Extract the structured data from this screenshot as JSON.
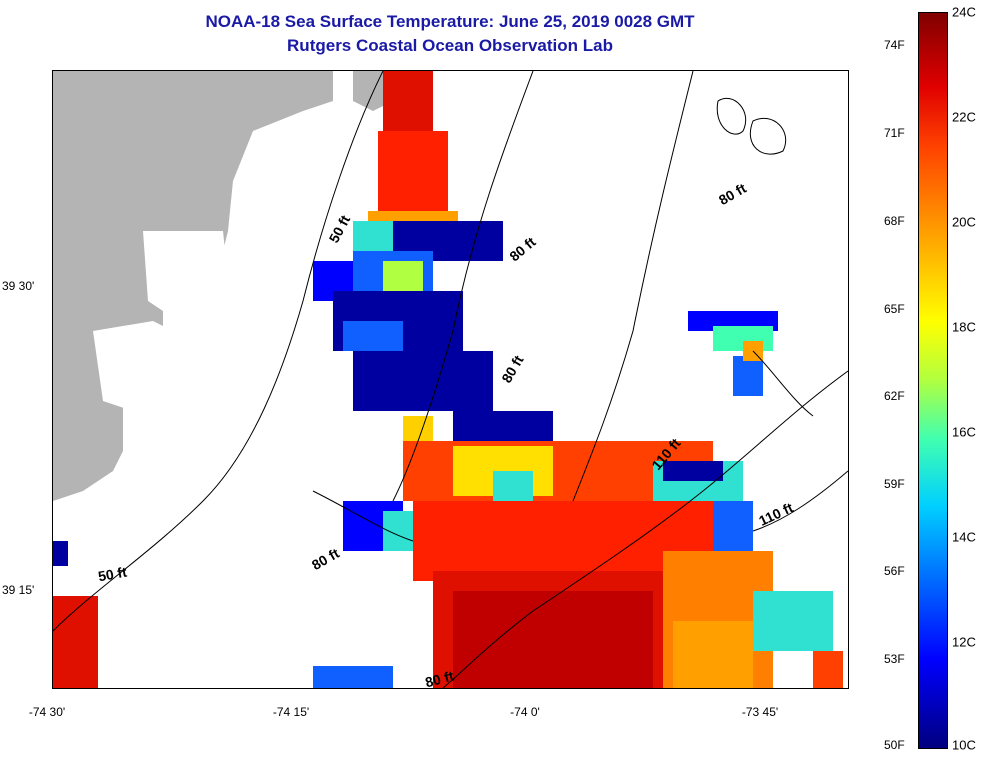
{
  "header": {
    "title": "NOAA-18 Sea Surface Temperature:  June 25, 2019 0028 GMT",
    "subtitle": "Rutgers Coastal Ocean Observation Lab"
  },
  "axes": {
    "x_ticks": [
      "-74 30'",
      "-74 15'",
      "-74 0'",
      "-73 45'"
    ],
    "y_ticks": [
      "39 30'",
      "39 15'"
    ]
  },
  "contours": {
    "labels": [
      "50 ft",
      "80 ft",
      "80 ft",
      "80 ft",
      "110 ft",
      "110 ft",
      "80 ft",
      "50 ft",
      "80 ft"
    ]
  },
  "colorbar": {
    "fahrenheit": [
      "74F",
      "71F",
      "68F",
      "65F",
      "62F",
      "59F",
      "56F",
      "53F",
      "50F"
    ],
    "celsius": [
      "24C",
      "22C",
      "20C",
      "18C",
      "16C",
      "14C",
      "12C",
      "10C"
    ],
    "colors": [
      "#00007f",
      "#0000ff",
      "#0080ff",
      "#00d0ff",
      "#40ffb0",
      "#ffff00",
      "#ffa000",
      "#ff4000",
      "#e00000",
      "#800000"
    ]
  },
  "map_colors": {
    "land": "#b4b4b4",
    "cold": "#0000a0",
    "cool": "#1060ff",
    "mid": "#30e0d0",
    "warm": "#ff8000",
    "hot": "#e01000",
    "hottest": "#c00000"
  }
}
